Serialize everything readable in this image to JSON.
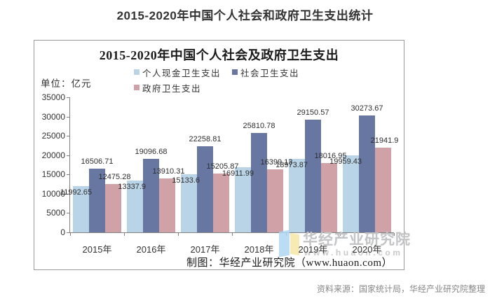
{
  "page_title": "2015-2020年中国个人社会和政府卫生支出统计",
  "source_note": "资料来源：国家统计局，华经产业研究院整理",
  "chart": {
    "title": "2015-2020年中国个人社会及政府卫生支出",
    "unit_label": "单位：亿元",
    "credit": "制图：华经产业研究院（www.huaon.com）",
    "watermark_text": "华经产业研究院",
    "watermark_url": "www.huaon.com",
    "colors": {
      "personal": "#b9d4e7",
      "social": "#6877a1",
      "government": "#d0a1a6",
      "axis": "#808080",
      "label_text": "#2e2e2e",
      "watermark": "#c3c4c6"
    }
  },
  "chart_data": {
    "type": "bar",
    "title": "2015-2020年中国个人社会及政府卫生支出",
    "unit": "亿元",
    "categories": [
      "2015年",
      "2016年",
      "2017年",
      "2018年",
      "2019年",
      "2020年"
    ],
    "series": [
      {
        "name": "个人现金卫生支出",
        "color": "#b9d4e7",
        "values": [
          11992.65,
          13337.9,
          15133.6,
          16911.99,
          18973.87,
          19959.43
        ]
      },
      {
        "name": "社会卫生支出",
        "color": "#6877a1",
        "values": [
          16506.71,
          19096.68,
          22258.81,
          25810.78,
          29150.57,
          30273.67
        ]
      },
      {
        "name": "政府卫生支出",
        "color": "#d0a1a6",
        "values": [
          12475.28,
          13910.31,
          15205.87,
          16399.13,
          18016.95,
          21941.9
        ]
      }
    ],
    "ylim": [
      0,
      35000
    ],
    "ytick_step": 5000,
    "yticks": [
      0,
      5000,
      10000,
      15000,
      20000,
      25000,
      30000,
      35000
    ],
    "grid": false,
    "legend_position": "top"
  }
}
